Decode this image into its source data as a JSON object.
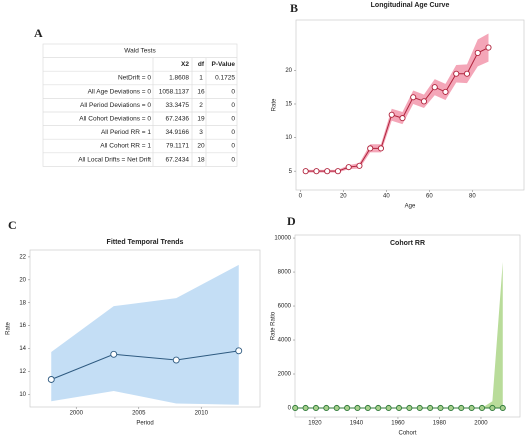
{
  "table": {
    "panel_label": "A",
    "title": "Wald Tests",
    "columns": [
      "X2",
      "df",
      "P-Value"
    ],
    "rows": [
      [
        "NetDrift = 0",
        1.8608,
        1,
        0.1725
      ],
      [
        "All Age Deviations = 0",
        1058.1137,
        16,
        0
      ],
      [
        "All Period Deviations = 0",
        33.3475,
        2,
        0
      ],
      [
        "All Cohort Deviations = 0",
        67.2436,
        19,
        0
      ],
      [
        "All Period RR = 1",
        34.9166,
        3,
        0
      ],
      [
        "All Cohort RR = 1",
        79.1171,
        20,
        0
      ],
      [
        "All Local Drifts = Net Drift",
        67.2434,
        18,
        0
      ]
    ]
  },
  "chart_data": [
    {
      "type": "line",
      "panel_label": "B",
      "title": "Longitudinal Age Curve",
      "xlabel": "Age",
      "ylabel": "Rate",
      "x": [
        2.5,
        7.5,
        12.5,
        17.5,
        22.5,
        27.5,
        32.5,
        37.5,
        42.5,
        47.5,
        52.5,
        57.5,
        62.5,
        67.5,
        72.5,
        77.5,
        82.5,
        87.5
      ],
      "values": [
        5,
        5,
        5,
        5,
        5.6,
        5.8,
        8.4,
        8.4,
        13.4,
        12.9,
        16,
        15.4,
        17.5,
        16.8,
        19.5,
        19.5,
        22.6,
        23.4
      ],
      "lower": [
        4.8,
        4.8,
        4.8,
        4.8,
        5.3,
        5.4,
        7.8,
        7.8,
        12.5,
        12,
        15,
        14.4,
        16.3,
        15.6,
        18.2,
        18.1,
        20.6,
        21.3
      ],
      "upper": [
        5.2,
        5.2,
        5.2,
        5.2,
        5.9,
        6.2,
        9,
        9,
        14.3,
        13.8,
        17,
        16.4,
        18.7,
        18,
        20.8,
        20.9,
        24.6,
        25.5
      ],
      "xlim": [
        -2,
        104
      ],
      "ylim": [
        2.2,
        27.5
      ],
      "xticks": [
        0,
        20,
        40,
        60,
        80
      ],
      "yticks": [
        5,
        10,
        15,
        20
      ],
      "color": "#b0233c",
      "band_color": "#f4a6b8",
      "marker_fill": "#ffffff"
    },
    {
      "type": "line",
      "panel_label": "C",
      "title": "Fitted Temporal Trends",
      "xlabel": "Period",
      "ylabel": "Rate",
      "x": [
        1998,
        2003,
        2008,
        2013
      ],
      "values": [
        11.3,
        13.5,
        13,
        13.8
      ],
      "lower": [
        9.4,
        10.3,
        9.2,
        9.1
      ],
      "upper": [
        13.7,
        17.7,
        18.4,
        21.3
      ],
      "xlim": [
        1996.3,
        2014.7
      ],
      "ylim": [
        8.9,
        22.6
      ],
      "xticks": [
        2000,
        2005,
        2010
      ],
      "yticks": [
        10,
        12,
        14,
        16,
        18,
        20,
        22
      ],
      "color": "#2e5a80",
      "band_color": "#c4def5",
      "marker_fill": "#ffffff"
    },
    {
      "type": "line",
      "panel_label": "D",
      "title": "Cohort RR",
      "xlabel": "Cohort",
      "ylabel": "Rate Ratio",
      "x": [
        1910.5,
        1915.5,
        1920.5,
        1925.5,
        1930.5,
        1935.5,
        1940.5,
        1945.5,
        1950.5,
        1955.5,
        1960.5,
        1965.5,
        1970.5,
        1975.5,
        1980.5,
        1985.5,
        1990.5,
        1995.5,
        2000.5,
        2005.5,
        2010.5
      ],
      "values": [
        1,
        1,
        1,
        1,
        1,
        1,
        1,
        1,
        1,
        1,
        1,
        1,
        1,
        1,
        1,
        1,
        1,
        1,
        1,
        1,
        1
      ],
      "lower": [
        0,
        0,
        0,
        0,
        0,
        0,
        0,
        0,
        0,
        0,
        0,
        0,
        0,
        0,
        0,
        0,
        0,
        0,
        0,
        0,
        0
      ],
      "upper": [
        2,
        2,
        2,
        2,
        2,
        2,
        2,
        2,
        2,
        2,
        2,
        2,
        2,
        2,
        2,
        2,
        3,
        5,
        10,
        400,
        8600
      ],
      "xlim": [
        1910.4,
        2018.8
      ],
      "ylim": [
        -530,
        10180
      ],
      "xticks": [
        1920,
        1940,
        1960,
        1980,
        2000
      ],
      "yticks": [
        0,
        2000,
        4000,
        6000,
        8000,
        10000
      ],
      "color": "#2f7a3a",
      "band_color": "#b9dc9a",
      "marker_fill": "#a8d08d"
    }
  ]
}
